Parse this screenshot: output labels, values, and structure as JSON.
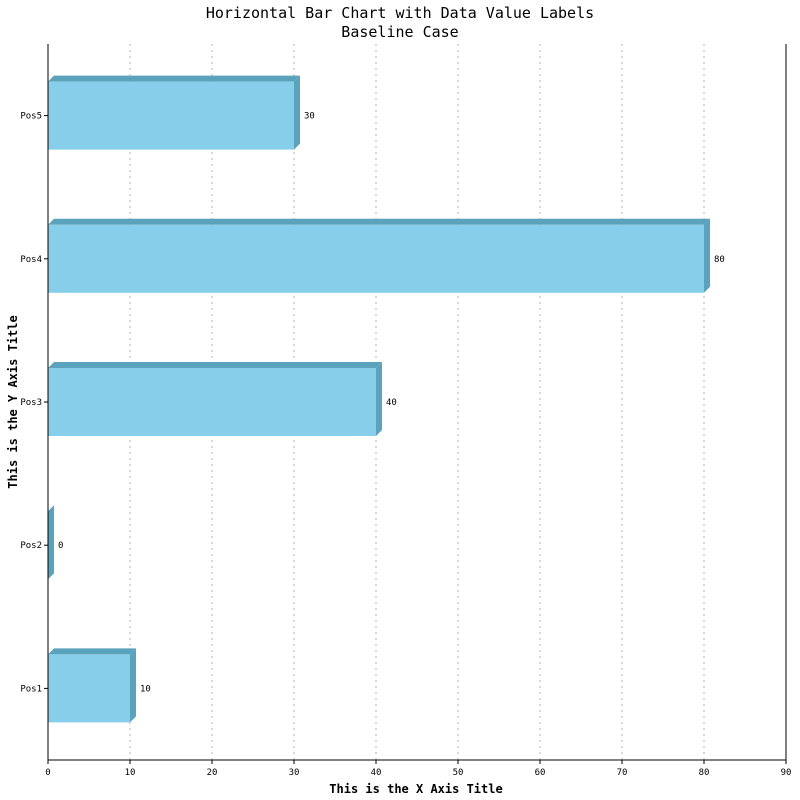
{
  "chart_data": {
    "type": "bar",
    "orientation": "horizontal",
    "title": "Horizontal Bar Chart with Data Value Labels",
    "subtitle": "Baseline Case",
    "xlabel": "This is the X Axis Title",
    "ylabel": "This is the Y Axis Title",
    "categories": [
      "Pos1",
      "Pos2",
      "Pos3",
      "Pos4",
      "Pos5"
    ],
    "values": [
      10,
      0,
      40,
      80,
      30
    ],
    "data_labels": [
      "10",
      "0",
      "40",
      "80",
      "30"
    ],
    "xlim": [
      0,
      90
    ],
    "xticks": [
      "0",
      "10",
      "20",
      "30",
      "40",
      "50",
      "60",
      "70",
      "80",
      "90"
    ],
    "grid": "vertical dotted",
    "legend": "none",
    "colors": {
      "bar_face": "#87ceeb",
      "bar_shade": "#5ba3bd",
      "grid": "#b0b0b0",
      "axis": "#000000"
    }
  }
}
